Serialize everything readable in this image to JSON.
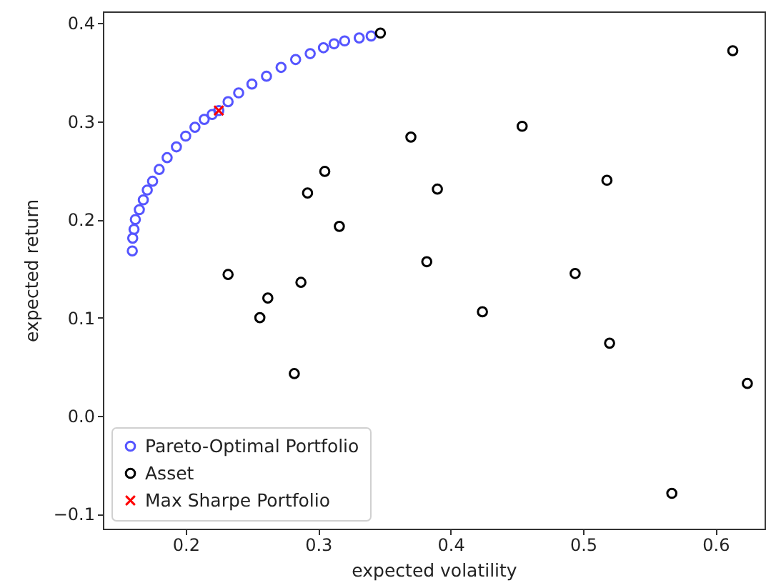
{
  "chart_data": {
    "type": "scatter",
    "xlabel": "expected volatility",
    "ylabel": "expected return",
    "xlim": [
      0.1375,
      0.637
    ],
    "ylim": [
      -0.115,
      0.412
    ],
    "xticks": [
      0.2,
      0.3,
      0.4,
      0.5,
      0.6
    ],
    "yticks": [
      -0.1,
      {
        "value": 0,
        "label": "0.0"
      },
      0.1,
      0.2,
      0.3,
      0.4
    ],
    "grid": false,
    "legend": "bottom left",
    "series": [
      {
        "name": "Pareto-Optimal Portfolio",
        "color": "#5555ff",
        "marker": "circle",
        "x": [
          0.1597,
          0.16,
          0.161,
          0.162,
          0.165,
          0.168,
          0.171,
          0.175,
          0.18,
          0.186,
          0.193,
          0.2,
          0.207,
          0.214,
          0.22,
          0.225,
          0.232,
          0.24,
          0.25,
          0.261,
          0.272,
          0.283,
          0.294,
          0.304,
          0.312,
          0.32,
          0.331,
          0.34
        ],
        "values": [
          0.168,
          0.181,
          0.19,
          0.2,
          0.21,
          0.22,
          0.23,
          0.239,
          0.251,
          0.263,
          0.274,
          0.285,
          0.294,
          0.302,
          0.307,
          0.311,
          0.32,
          0.329,
          0.338,
          0.346,
          0.355,
          0.363,
          0.369,
          0.375,
          0.379,
          0.382,
          0.385,
          0.387
        ]
      },
      {
        "name": "Asset",
        "color": "#000000",
        "marker": "circle",
        "x": [
          0.347,
          0.613,
          0.37,
          0.454,
          0.39,
          0.292,
          0.305,
          0.316,
          0.518,
          0.382,
          0.494,
          0.232,
          0.287,
          0.262,
          0.256,
          0.424,
          0.52,
          0.282,
          0.624,
          0.567
        ],
        "values": [
          0.39,
          0.372,
          0.284,
          0.295,
          0.231,
          0.227,
          0.249,
          0.193,
          0.24,
          0.157,
          0.145,
          0.144,
          0.136,
          0.12,
          0.1,
          0.106,
          0.074,
          0.043,
          0.033,
          -0.079
        ]
      },
      {
        "name": "Max Sharpe Portfolio",
        "color": "#ff0000",
        "marker": "cross",
        "x": [
          0.225
        ],
        "values": [
          0.311
        ]
      }
    ]
  }
}
